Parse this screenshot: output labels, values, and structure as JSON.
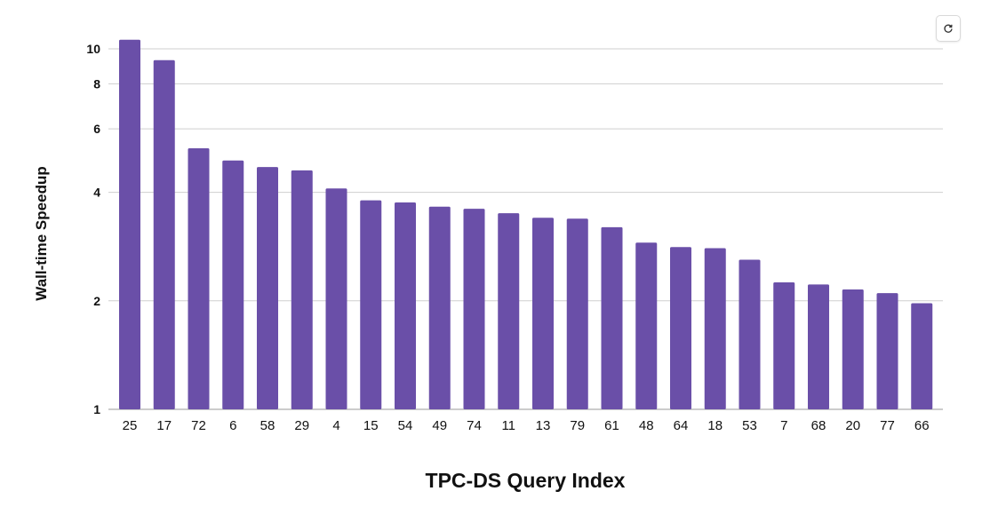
{
  "toolbar": {
    "refresh_icon": "refresh-icon"
  },
  "colors": {
    "bar": "#6a4fa8",
    "grid": "#cfcfcf",
    "text": "#111111"
  },
  "chart_data": {
    "type": "bar",
    "title": "",
    "xlabel": "TPC-DS Query Index",
    "ylabel": "Wall-time Speedup",
    "yscale": "log",
    "ylim": [
      1,
      10.8
    ],
    "yticks": [
      1,
      2,
      4,
      6,
      8,
      10
    ],
    "grid": true,
    "categories": [
      "25",
      "17",
      "72",
      "6",
      "58",
      "29",
      "4",
      "15",
      "54",
      "49",
      "74",
      "11",
      "13",
      "79",
      "61",
      "48",
      "64",
      "18",
      "53",
      "7",
      "68",
      "20",
      "77",
      "66"
    ],
    "values": [
      10.6,
      9.3,
      5.3,
      4.9,
      4.7,
      4.6,
      4.1,
      3.8,
      3.75,
      3.65,
      3.6,
      3.5,
      3.4,
      3.38,
      3.2,
      2.9,
      2.82,
      2.8,
      2.6,
      2.25,
      2.22,
      2.15,
      2.1,
      1.97
    ]
  }
}
